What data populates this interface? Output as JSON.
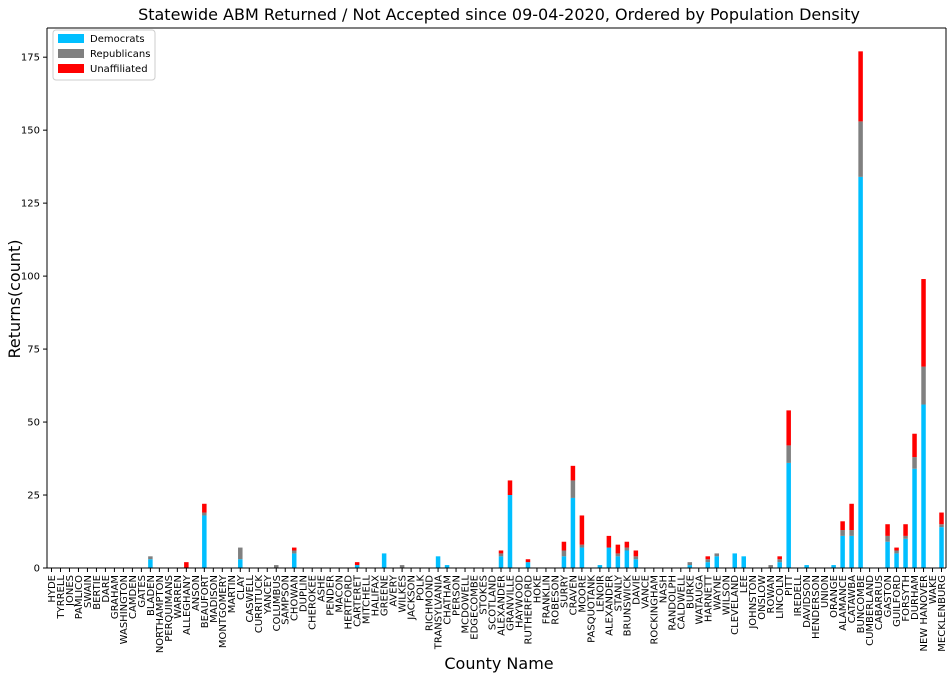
{
  "chart_data": {
    "type": "bar",
    "stacked": true,
    "title": "Statewide ABM Returned / Not Accepted since 09-04-2020, Ordered by Population Density",
    "xlabel": "County Name",
    "ylabel": "Returns(count)",
    "ylim": [
      0,
      185
    ],
    "yticks": [
      0,
      25,
      50,
      75,
      100,
      125,
      150,
      175
    ],
    "grid": false,
    "legend_position": "top-left",
    "categories": [
      "HYDE",
      "TYRRELL",
      "JONES",
      "PAMLICO",
      "SWAIN",
      "BERTIE",
      "DARE",
      "GRAHAM",
      "WASHINGTON",
      "CAMDEN",
      "GATES",
      "BLADEN",
      "NORTHAMPTON",
      "PERQUIMANS",
      "WARREN",
      "ALLEGHANY",
      "ANSON",
      "BEAUFORT",
      "MADISON",
      "MONTGOMERY",
      "MARTIN",
      "CLAY",
      "CASWELL",
      "CURRITUCK",
      "YANCEY",
      "COLUMBUS",
      "SAMPSON",
      "CHOWAN",
      "DUPLIN",
      "CHEROKEE",
      "ASHE",
      "PENDER",
      "MACON",
      "HERTFORD",
      "CARTERET",
      "MITCHELL",
      "HALIFAX",
      "GREENE",
      "AVERY",
      "WILKES",
      "JACKSON",
      "POLK",
      "RICHMOND",
      "TRANSYLVANIA",
      "CHATHAM",
      "PERSON",
      "MCDOWELL",
      "EDGECOMBE",
      "STOKES",
      "SCOTLAND",
      "ALEXANDER",
      "GRANVILLE",
      "HAYWOOD",
      "RUTHERFORD",
      "HOKE",
      "FRANKLIN",
      "ROBESON",
      "SURRY",
      "CRAVEN",
      "MOORE",
      "PASQUOTANK",
      "LENOIR",
      "ALEXANDER",
      "STANLY",
      "BRUNSWICK",
      "DAVIE",
      "VANCE",
      "ROCKINGHAM",
      "NASH",
      "RANDOLPH",
      "CALDWELL",
      "BURKE",
      "WATAUGA",
      "HARNETT",
      "WAYNE",
      "WILSON",
      "CLEVELAND",
      "LEE",
      "JOHNSTON",
      "ONSLOW",
      "ROWAN",
      "LINCOLN",
      "PITT",
      "IREDELL",
      "DAVIDSON",
      "HENDERSON",
      "UNION",
      "ORANGE",
      "ALAMANCE",
      "CATAWBA",
      "BUNCOMBE",
      "CUMBERLAND",
      "CABARRUS",
      "GASTON",
      "GUILFORD",
      "FORSYTH",
      "DURHAM",
      "NEW HANOVER",
      "WAKE",
      "MECKLENBURG"
    ],
    "series": [
      {
        "name": "Democrats",
        "color": "#00bfff",
        "values": [
          0,
          0,
          0,
          0,
          0,
          0,
          0,
          0,
          0,
          0,
          0,
          3,
          0,
          0,
          0,
          0,
          0,
          18,
          0,
          0,
          0,
          3,
          0,
          0,
          0,
          0,
          0,
          5,
          0,
          0,
          0,
          0,
          0,
          0,
          1,
          0,
          0,
          5,
          0,
          0,
          0,
          0,
          0,
          4,
          1,
          0,
          0,
          0,
          0,
          0,
          4,
          25,
          0,
          2,
          0,
          0,
          0,
          4,
          24,
          7,
          0,
          1,
          7,
          4,
          6,
          3,
          0,
          0,
          0,
          0,
          0,
          1,
          0,
          2,
          4,
          0,
          5,
          4,
          0,
          0,
          0,
          2,
          36,
          0,
          1,
          0,
          0,
          1,
          11,
          11,
          134,
          0,
          0,
          9,
          5,
          10,
          34,
          56,
          0,
          14
        ]
      },
      {
        "name": "Republicans",
        "color": "#808080",
        "values": [
          0,
          0,
          0,
          0,
          0,
          0,
          0,
          0,
          0,
          0,
          0,
          1,
          0,
          0,
          0,
          0,
          0,
          1,
          0,
          0,
          0,
          4,
          0,
          0,
          0,
          1,
          0,
          1,
          0,
          0,
          0,
          0,
          0,
          0,
          0,
          0,
          0,
          0,
          0,
          1,
          0,
          0,
          0,
          0,
          0,
          0,
          0,
          0,
          0,
          0,
          1,
          0,
          0,
          0,
          0,
          0,
          0,
          2,
          6,
          1,
          0,
          0,
          0,
          1,
          1,
          1,
          0,
          0,
          0,
          0,
          0,
          1,
          0,
          1,
          1,
          0,
          0,
          0,
          0,
          0,
          1,
          1,
          6,
          0,
          0,
          0,
          0,
          0,
          2,
          2,
          19,
          0,
          0,
          2,
          1,
          1,
          4,
          13,
          0,
          1
        ]
      },
      {
        "name": "Unaffiliated",
        "color": "#ff0000",
        "values": [
          0,
          0,
          0,
          0,
          0,
          0,
          0,
          0,
          0,
          0,
          0,
          0,
          0,
          0,
          0,
          2,
          0,
          3,
          0,
          0,
          0,
          0,
          0,
          0,
          0,
          0,
          0,
          1,
          0,
          0,
          0,
          0,
          0,
          0,
          1,
          0,
          0,
          0,
          0,
          0,
          0,
          0,
          0,
          0,
          0,
          0,
          0,
          0,
          0,
          0,
          1,
          5,
          0,
          1,
          0,
          0,
          0,
          3,
          5,
          10,
          0,
          0,
          4,
          3,
          2,
          2,
          0,
          0,
          0,
          0,
          0,
          0,
          0,
          1,
          0,
          0,
          0,
          0,
          0,
          0,
          0,
          1,
          12,
          0,
          0,
          0,
          0,
          0,
          3,
          9,
          24,
          0,
          0,
          4,
          1,
          4,
          8,
          30,
          0,
          4
        ]
      }
    ]
  }
}
